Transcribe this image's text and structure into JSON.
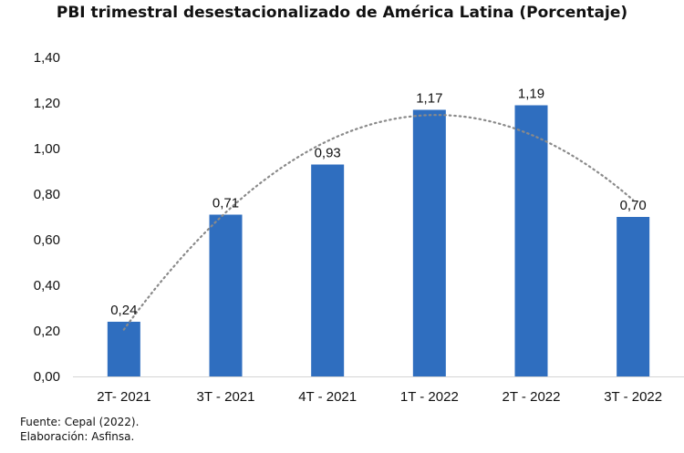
{
  "chart_data": {
    "type": "bar",
    "title": "PBI trimestral desestacionalizado de América Latina (Porcentaje)",
    "categories": [
      "2T- 2021",
      "3T - 2021",
      "4T - 2021",
      "1T - 2022",
      "2T - 2022",
      "3T - 2022"
    ],
    "values": [
      0.24,
      0.71,
      0.93,
      1.17,
      1.19,
      0.7
    ],
    "data_labels": [
      "0,24",
      "0,71",
      "0,93",
      "1,17",
      "1,19",
      "0,70"
    ],
    "y_ticks": [
      "0,00",
      "0,20",
      "0,40",
      "0,60",
      "0,80",
      "1,00",
      "1,20",
      "1,40"
    ],
    "ylim": [
      0,
      1.4
    ],
    "xlabel": "",
    "ylabel": "",
    "grid": false,
    "bar_color": "#2f6ebf",
    "trendline": {
      "type": "polynomial",
      "style": "dotted",
      "color": "#8a8a8a"
    }
  },
  "footer": {
    "source": "Fuente: Cepal (2022).",
    "credit": "Elaboración: Asfinsa."
  }
}
